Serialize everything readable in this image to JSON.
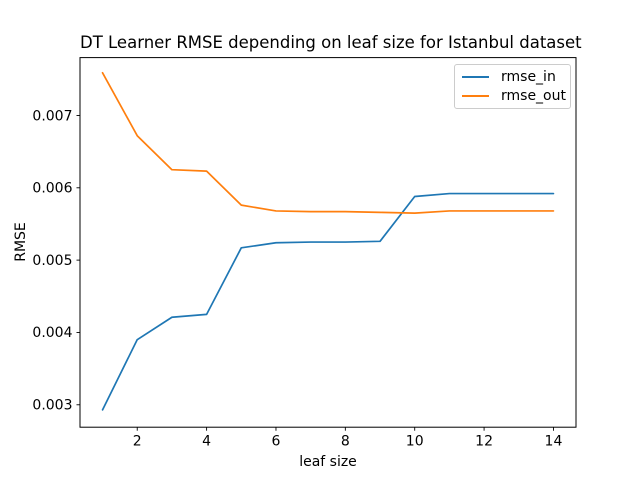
{
  "chart_data": {
    "type": "line",
    "title": "DT Learner RMSE depending on leaf size for Istanbul dataset",
    "xlabel": "leaf size",
    "ylabel": "RMSE",
    "x": [
      1,
      2,
      3,
      4,
      5,
      6,
      7,
      8,
      9,
      10,
      11,
      12,
      13,
      14
    ],
    "series": [
      {
        "name": "rmse_in",
        "color": "#1f77b4",
        "values": [
          0.00293,
          0.0039,
          0.00421,
          0.00425,
          0.00517,
          0.00524,
          0.00525,
          0.00525,
          0.00526,
          0.00588,
          0.00592,
          0.00592,
          0.00592,
          0.00592
        ]
      },
      {
        "name": "rmse_out",
        "color": "#ff7f0e",
        "values": [
          0.00759,
          0.00672,
          0.00625,
          0.00623,
          0.00576,
          0.00568,
          0.00567,
          0.00567,
          0.00566,
          0.00565,
          0.00568,
          0.00568,
          0.00568,
          0.00568
        ]
      }
    ],
    "xlim": [
      0.35,
      14.65
    ],
    "ylim": [
      0.00269,
      0.0078
    ],
    "xticks": [
      2,
      4,
      6,
      8,
      10,
      12,
      14
    ],
    "yticks": [
      0.003,
      0.004,
      0.005,
      0.006,
      0.007
    ],
    "ytick_labels": [
      "0.003",
      "0.004",
      "0.005",
      "0.006",
      "0.007"
    ],
    "grid": false,
    "legend": {
      "position": "upper right",
      "entries": [
        "rmse_in",
        "rmse_out"
      ]
    },
    "axis_color": "#000000",
    "background_color": "#ffffff",
    "legend_border_color": "#cccccc"
  }
}
